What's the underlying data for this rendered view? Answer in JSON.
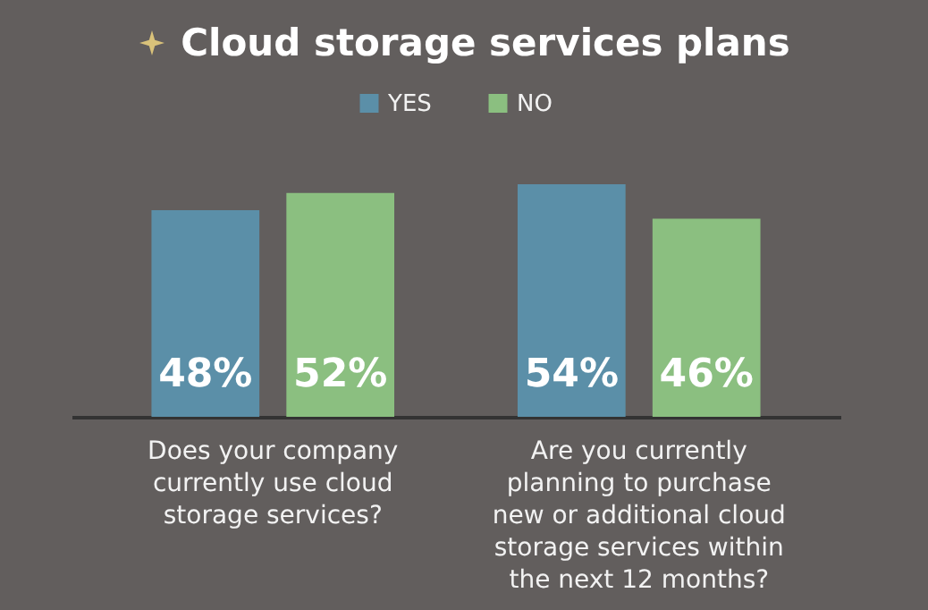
{
  "chart_data": {
    "type": "bar",
    "title": "Cloud storage services plans",
    "categories": [
      "Does your company currently use cloud storage services?",
      "Are you currently planning to purchase new or additional cloud storage services within the next 12 months?"
    ],
    "series": [
      {
        "name": "YES",
        "color": "#5b8fa8",
        "values": [
          48,
          54
        ],
        "value_labels": [
          "48%",
          "54%"
        ]
      },
      {
        "name": "NO",
        "color": "#8bbf80",
        "values": [
          52,
          46
        ],
        "value_labels": [
          "52%",
          "46%"
        ]
      }
    ],
    "legend": "top"
  }
}
